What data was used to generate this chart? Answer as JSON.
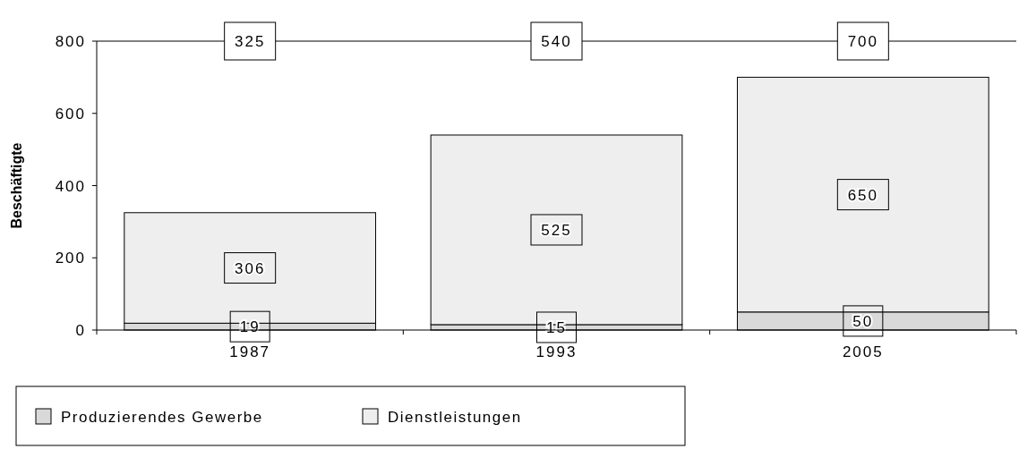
{
  "chart_data": {
    "type": "bar",
    "stacked": true,
    "ylabel": "Beschäftigte",
    "categories": [
      "1987",
      "1993",
      "2005"
    ],
    "series": [
      {
        "name": "Produzierendes Gewerbe",
        "color": "#d9d9d9",
        "values": [
          19,
          15,
          50
        ]
      },
      {
        "name": "Dienstleistungen",
        "color": "#eeeeee",
        "values": [
          306,
          525,
          650
        ]
      }
    ],
    "ylim": [
      0,
      800
    ],
    "yticks": [
      0,
      200,
      400,
      600,
      800
    ],
    "data_labels": true,
    "annotations": [
      "325",
      "540",
      "700"
    ],
    "legend": "bottom left",
    "grid": false
  }
}
